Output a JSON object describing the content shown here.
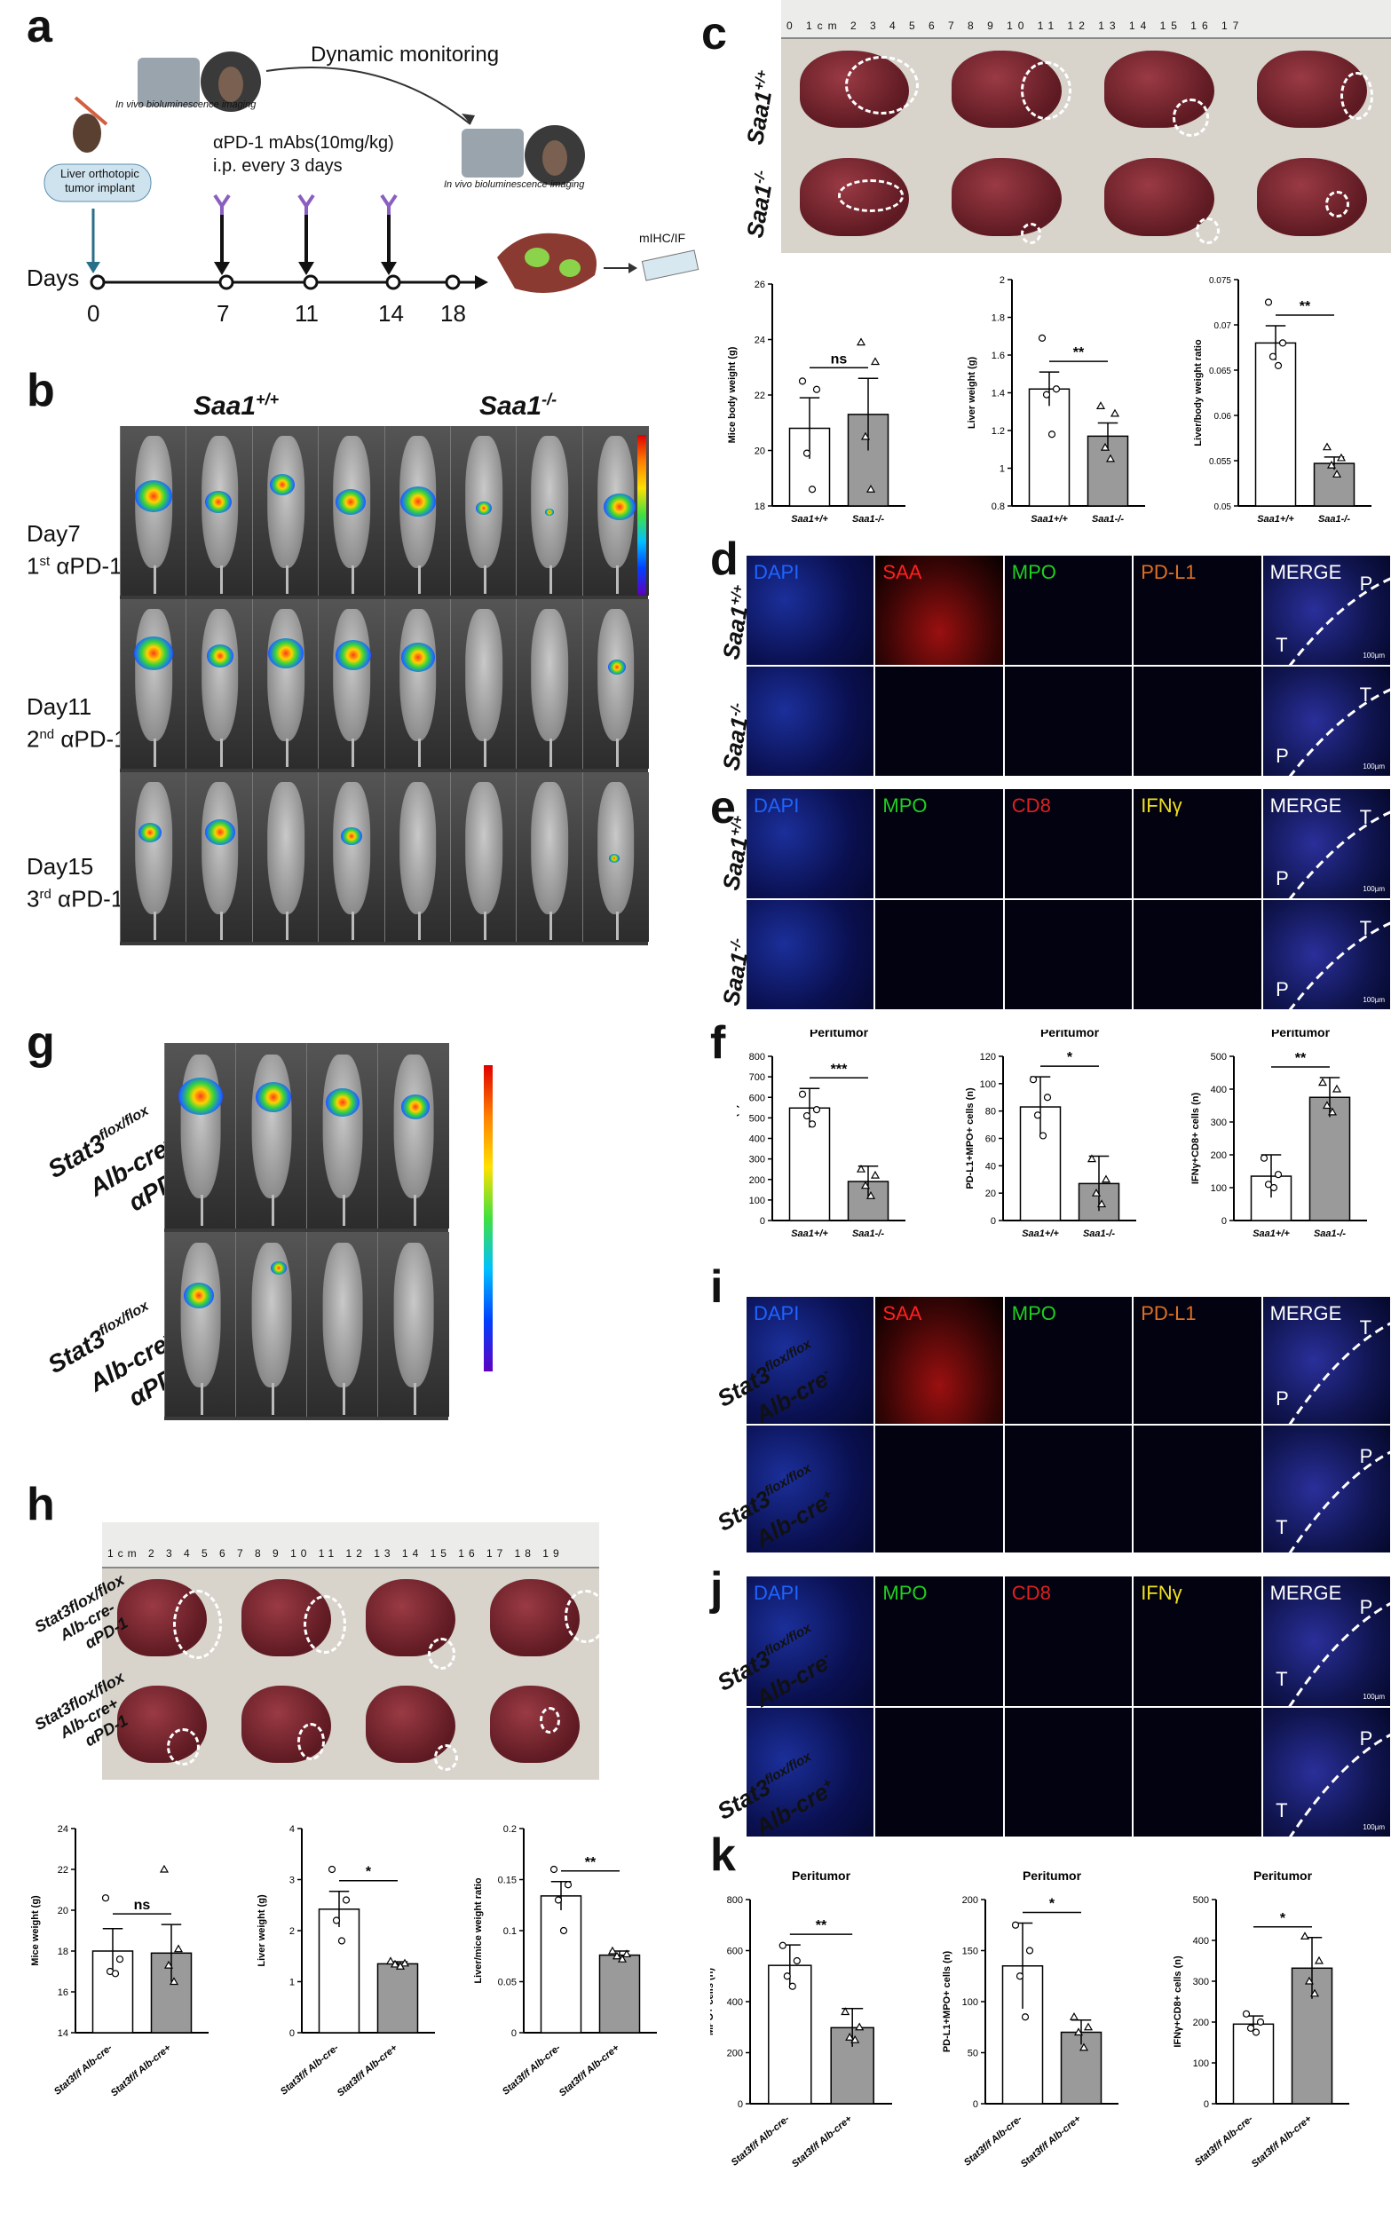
{
  "panel_letters": {
    "a": "a",
    "b": "b",
    "c": "c",
    "d": "d",
    "e": "e",
    "f": "f",
    "g": "g",
    "h": "h",
    "i": "i",
    "j": "j",
    "k": "k"
  },
  "panel_a": {
    "imaging_label_1": "In vivo bioluminescence imaging",
    "imaging_label_2": "In vivo bioluminescence imaging",
    "dynamic_monitoring": "Dynamic monitoring",
    "implant_label": "Liver orthotopic tumor implant",
    "treatment_line1": "αPD-1 mAbs(10mg/kg)",
    "treatment_line2": "i.p. every 3 days",
    "days_label": "Days",
    "days": [
      "0",
      "7",
      "11",
      "14",
      "18"
    ],
    "endpoint_label": "mIHC/IF"
  },
  "panel_b": {
    "group1": "Saa1",
    "group1_sup": "+/+",
    "group2": "Saa1",
    "group2_sup": "-/-",
    "rows": [
      {
        "day": "Day7",
        "dose_num": "1",
        "dose_sup": "st",
        "drug": " αPD-1"
      },
      {
        "day": "Day11",
        "dose_num": "2",
        "dose_sup": "nd",
        "drug": " αPD-1"
      },
      {
        "day": "Day15",
        "dose_num": "3",
        "dose_sup": "rd",
        "drug": " αPD-1"
      }
    ]
  },
  "panel_c": {
    "ruler_text": "0  1cm  2  3  4  5  6  7  8  9  10  11  12  13  14  15  16  17",
    "row1": "Saa1",
    "row1_sup": "+/+",
    "row2": "Saa1",
    "row2_sup": "-/-"
  },
  "panel_d": {
    "channels": [
      {
        "label": "DAPI",
        "color": "#1e64ff"
      },
      {
        "label": "SAA",
        "color": "#ff2020"
      },
      {
        "label": "MPO",
        "color": "#20d020"
      },
      {
        "label": "PD-L1",
        "color": "#e07020"
      },
      {
        "label": "MERGE",
        "color": "#ffffff"
      }
    ],
    "row1": "Saa1",
    "row1_sup": "+/+",
    "row2": "Saa1",
    "row2_sup": "-/-",
    "merge_row1": [
      "P",
      "T"
    ],
    "merge_row2": [
      "T",
      "P"
    ],
    "scale": "100µm"
  },
  "panel_e": {
    "channels": [
      {
        "label": "DAPI",
        "color": "#1e64ff"
      },
      {
        "label": "MPO",
        "color": "#20d020"
      },
      {
        "label": "CD8",
        "color": "#e02020"
      },
      {
        "label": "IFNγ",
        "color": "#f0e020"
      },
      {
        "label": "MERGE",
        "color": "#ffffff"
      }
    ],
    "row1": "Saa1",
    "row1_sup": "+/+",
    "row2": "Saa1",
    "row2_sup": "-/-",
    "merge_row1": [
      "T",
      "P"
    ],
    "merge_row2": [
      "T",
      "P"
    ],
    "scale": "100µm"
  },
  "panel_g": {
    "row1_line1": "Stat3",
    "row1_line1_sup": "flox/flox",
    "row1_line2": "Alb-cre",
    "row1_line2_sup": "-",
    "row1_line3": "αPD-1",
    "row2_line1": "Stat3",
    "row2_line1_sup": "flox/flox",
    "row2_line2": "Alb-cre",
    "row2_line2_sup": "+",
    "row2_line3": "αPD-1"
  },
  "panel_h": {
    "ruler_text": "1cm 2 3 4 5 6 7 8 9 10 11 12 13 14 15 16 17 18 19",
    "row1": [
      "Stat3flox/flox",
      "Alb-cre-",
      "αPD-1"
    ],
    "row2": [
      "Stat3flox/flox",
      "Alb-cre+",
      "αPD-1"
    ]
  },
  "panel_i": {
    "channels": [
      {
        "label": "DAPI",
        "color": "#1e64ff"
      },
      {
        "label": "SAA",
        "color": "#ff2020"
      },
      {
        "label": "MPO",
        "color": "#20d020"
      },
      {
        "label": "PD-L1",
        "color": "#e07020"
      },
      {
        "label": "MERGE",
        "color": "#ffffff"
      }
    ],
    "row1_line1": "Stat3",
    "row1_line1_sup": "flox/flox",
    "row1_line2": "Alb-cre",
    "row1_line2_sup": "-",
    "row2_line1": "Stat3",
    "row2_line1_sup": "flox/flox",
    "row2_line2": "Alb-cre",
    "row2_line2_sup": "+",
    "merge_row1": [
      "T",
      "P"
    ],
    "merge_row2": [
      "P",
      "T"
    ]
  },
  "panel_j": {
    "channels": [
      {
        "label": "DAPI",
        "color": "#1e64ff"
      },
      {
        "label": "MPO",
        "color": "#20d020"
      },
      {
        "label": "CD8",
        "color": "#e02020"
      },
      {
        "label": "IFNγ",
        "color": "#f0e020"
      },
      {
        "label": "MERGE",
        "color": "#ffffff"
      }
    ],
    "merge_row1": [
      "P",
      "T"
    ],
    "merge_row2": [
      "P",
      "T"
    ],
    "scale": "100µm"
  },
  "chart_data": [
    {
      "id": "c1",
      "type": "bar",
      "ylabel": "Mice body weight (g)",
      "ylim": [
        18,
        26
      ],
      "yticks": [
        18,
        20,
        22,
        24,
        26
      ],
      "categories": [
        "Saa1+/+",
        "Saa1-/-"
      ],
      "values": [
        20.8,
        21.3
      ],
      "errors": [
        1.1,
        1.3
      ],
      "points": [
        [
          22.5,
          22.2,
          19.9,
          18.6
        ],
        [
          23.9,
          23.2,
          20.5,
          18.6
        ]
      ],
      "significance": "ns"
    },
    {
      "id": "c2",
      "type": "bar",
      "ylabel": "Liver weight (g)",
      "ylim": [
        0.8,
        2.0
      ],
      "yticks": [
        0.8,
        1.0,
        1.2,
        1.4,
        1.6,
        1.8,
        2.0
      ],
      "categories": [
        "Saa1+/+",
        "Saa1-/-"
      ],
      "values": [
        1.42,
        1.17
      ],
      "errors": [
        0.09,
        0.07
      ],
      "points": [
        [
          1.69,
          1.42,
          1.39,
          1.18
        ],
        [
          1.33,
          1.29,
          1.11,
          1.05
        ]
      ],
      "significance": "**"
    },
    {
      "id": "c3",
      "type": "bar",
      "ylabel": "Liver/body weight ratio",
      "ylim": [
        0.05,
        0.075
      ],
      "yticks": [
        0.05,
        0.055,
        0.06,
        0.065,
        0.07,
        0.075
      ],
      "categories": [
        "Saa1+/+",
        "Saa1-/-"
      ],
      "values": [
        0.068,
        0.0547
      ],
      "errors": [
        0.0019,
        0.0007
      ],
      "points": [
        [
          0.0725,
          0.068,
          0.0665,
          0.0655
        ],
        [
          0.0565,
          0.0553,
          0.0545,
          0.0535
        ]
      ],
      "significance": "**"
    },
    {
      "id": "f1",
      "type": "bar",
      "title": "Peritumor",
      "ylabel": "MPO+ cells (n)",
      "ylim": [
        0,
        800
      ],
      "yticks": [
        0,
        100,
        200,
        300,
        400,
        500,
        600,
        700,
        800
      ],
      "categories": [
        "Saa1+/+",
        "Saa1-/-"
      ],
      "values": [
        548,
        190
      ],
      "errors": [
        95,
        75
      ],
      "points": [
        [
          615,
          540,
          510,
          470
        ],
        [
          250,
          220,
          170,
          120
        ]
      ],
      "significance": "***"
    },
    {
      "id": "f2",
      "type": "bar",
      "title": "Peritumor",
      "ylabel": "PD-L1+MPO+ cells (n)",
      "ylim": [
        0,
        120
      ],
      "yticks": [
        0,
        20,
        40,
        60,
        80,
        100,
        120
      ],
      "categories": [
        "Saa1+/+",
        "Saa1-/-"
      ],
      "values": [
        83,
        27
      ],
      "errors": [
        22,
        20
      ],
      "points": [
        [
          103,
          90,
          77,
          62
        ],
        [
          45,
          30,
          20,
          12
        ]
      ],
      "significance": "*"
    },
    {
      "id": "f3",
      "type": "bar",
      "title": "Peritumor",
      "ylabel": "IFNγ+CD8+ cells (n)",
      "ylim": [
        0,
        500
      ],
      "yticks": [
        0,
        100,
        200,
        300,
        400,
        500
      ],
      "categories": [
        "Saa1+/+",
        "Saa1-/-"
      ],
      "values": [
        135,
        375
      ],
      "errors": [
        65,
        60
      ],
      "points": [
        [
          190,
          140,
          110,
          100
        ],
        [
          420,
          400,
          350,
          330
        ]
      ],
      "significance": "**"
    },
    {
      "id": "h1",
      "type": "bar",
      "ylabel": "Mice weight (g)",
      "ylim": [
        14,
        24
      ],
      "yticks": [
        14,
        16,
        18,
        20,
        22,
        24
      ],
      "categories": [
        "Stat3f/f Alb-cre-",
        "Stat3f/f Alb-cre+"
      ],
      "values": [
        18.0,
        17.9
      ],
      "errors": [
        1.1,
        1.4
      ],
      "points": [
        [
          20.6,
          17.6,
          17.0,
          16.9
        ],
        [
          22.0,
          18.1,
          17.3,
          16.5
        ]
      ],
      "significance": "ns"
    },
    {
      "id": "h2",
      "type": "bar",
      "ylabel": "Liver weight (g)",
      "ylim": [
        0,
        4
      ],
      "yticks": [
        0,
        1,
        2,
        3,
        4
      ],
      "categories": [
        "Stat3f/f Alb-cre-",
        "Stat3f/f Alb-cre+"
      ],
      "values": [
        2.42,
        1.35
      ],
      "errors": [
        0.35,
        0.04
      ],
      "points": [
        [
          3.2,
          2.6,
          2.2,
          1.8
        ],
        [
          1.4,
          1.36,
          1.34,
          1.3
        ]
      ],
      "significance": "*"
    },
    {
      "id": "h3",
      "type": "bar",
      "ylabel": "Liver/mice weight ratio",
      "ylim": [
        0,
        0.2
      ],
      "yticks": [
        0.0,
        0.05,
        0.1,
        0.15,
        0.2
      ],
      "categories": [
        "Stat3f/f Alb-cre-",
        "Stat3f/f Alb-cre+"
      ],
      "values": [
        0.134,
        0.076
      ],
      "errors": [
        0.014,
        0.004
      ],
      "points": [
        [
          0.16,
          0.145,
          0.13,
          0.1
        ],
        [
          0.08,
          0.077,
          0.075,
          0.072
        ]
      ],
      "significance": "**"
    },
    {
      "id": "k1",
      "type": "bar",
      "title": "Peritumor",
      "ylabel": "MPO+ cells (n)",
      "ylim": [
        0,
        800
      ],
      "yticks": [
        0,
        200,
        400,
        600,
        800
      ],
      "categories": [
        "Stat3f/f Alb-cre-",
        "Stat3f/f Alb-cre+"
      ],
      "values": [
        542,
        298
      ],
      "errors": [
        80,
        75
      ],
      "points": [
        [
          620,
          560,
          500,
          460
        ],
        [
          360,
          300,
          260,
          250
        ]
      ],
      "significance": "**"
    },
    {
      "id": "k2",
      "type": "bar",
      "title": "Peritumor",
      "ylabel": "PD-L1+MPO+ cells (n)",
      "ylim": [
        0,
        200
      ],
      "yticks": [
        0,
        50,
        100,
        150,
        200
      ],
      "categories": [
        "Stat3f/f Alb-cre-",
        "Stat3f/f Alb-cre+"
      ],
      "values": [
        135,
        70
      ],
      "errors": [
        42,
        12
      ],
      "points": [
        [
          175,
          150,
          125,
          85
        ],
        [
          85,
          75,
          70,
          55
        ]
      ],
      "significance": "*"
    },
    {
      "id": "k3",
      "type": "bar",
      "title": "Peritumor",
      "ylabel": "IFNγ+CD8+ cells (n)",
      "ylim": [
        0,
        500
      ],
      "yticks": [
        0,
        100,
        200,
        300,
        400,
        500
      ],
      "categories": [
        "Stat3f/f Alb-cre-",
        "Stat3f/f Alb-cre+"
      ],
      "values": [
        195,
        332
      ],
      "errors": [
        20,
        75
      ],
      "points": [
        [
          220,
          200,
          185,
          175
        ],
        [
          410,
          350,
          300,
          270
        ]
      ],
      "significance": "*"
    }
  ]
}
